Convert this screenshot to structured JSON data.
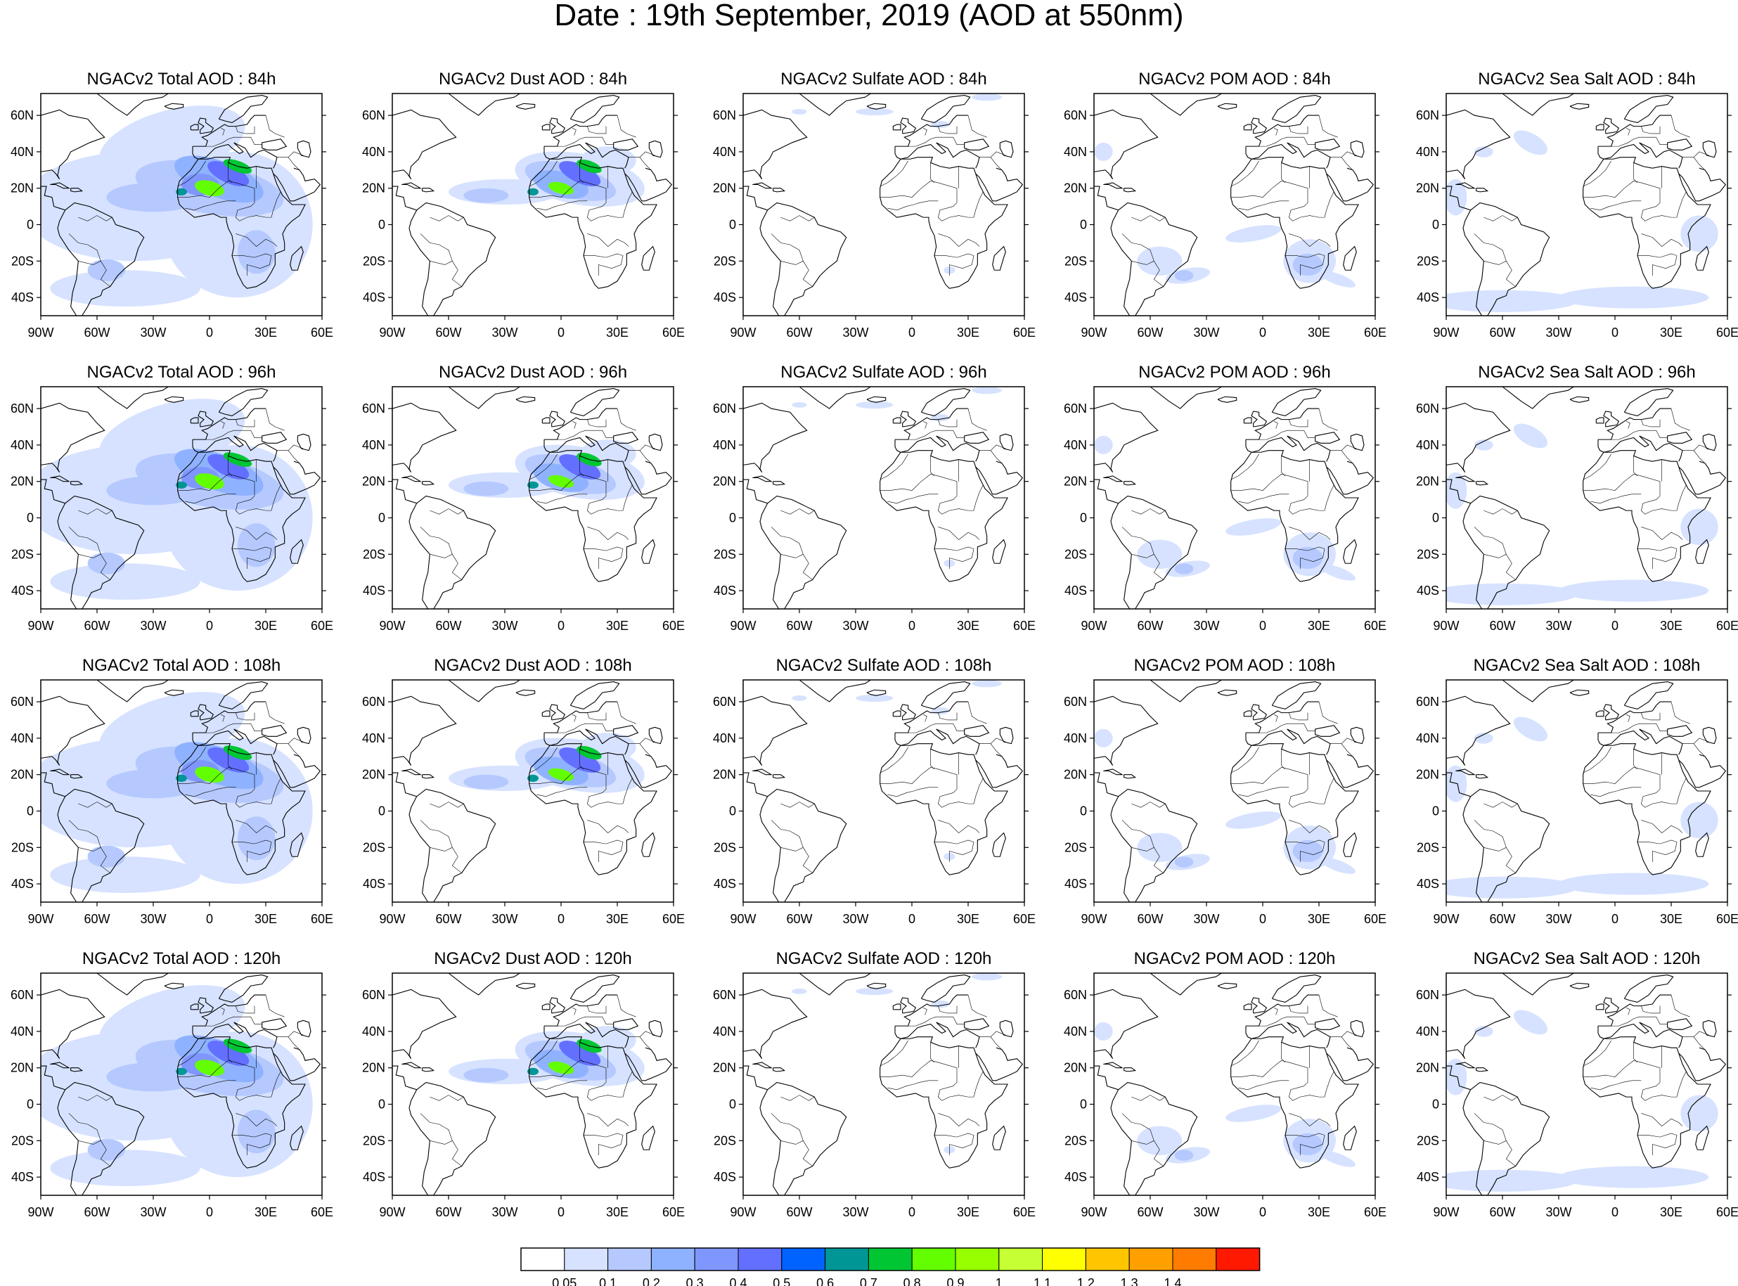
{
  "title": "Date : 19th September, 2019 (AOD at 550nm)",
  "lat_labels": [
    "60N",
    "40N",
    "20N",
    "0",
    "20S",
    "40S"
  ],
  "lon_labels": [
    "90W",
    "60W",
    "30W",
    "0",
    "30E",
    "60E"
  ],
  "map_extent": {
    "lon_min": -90,
    "lon_max": 60,
    "lat_min": -50,
    "lat_max": 72
  },
  "panels": [
    [
      {
        "title": "NGACv2 Total AOD : 84h",
        "species": "total",
        "lead": 84
      },
      {
        "title": "NGACv2 Dust AOD : 84h",
        "species": "dust",
        "lead": 84
      },
      {
        "title": "NGACv2 Sulfate AOD : 84h",
        "species": "sulfate",
        "lead": 84
      },
      {
        "title": "NGACv2 POM AOD : 84h",
        "species": "pom",
        "lead": 84
      },
      {
        "title": "NGACv2 Sea Salt AOD : 84h",
        "species": "seasalt",
        "lead": 84
      }
    ],
    [
      {
        "title": "NGACv2 Total AOD : 96h",
        "species": "total",
        "lead": 96
      },
      {
        "title": "NGACv2 Dust AOD : 96h",
        "species": "dust",
        "lead": 96
      },
      {
        "title": "NGACv2 Sulfate AOD : 96h",
        "species": "sulfate",
        "lead": 96
      },
      {
        "title": "NGACv2 POM AOD : 96h",
        "species": "pom",
        "lead": 96
      },
      {
        "title": "NGACv2 Sea Salt AOD : 96h",
        "species": "seasalt",
        "lead": 96
      }
    ],
    [
      {
        "title": "NGACv2 Total AOD : 108h",
        "species": "total",
        "lead": 108
      },
      {
        "title": "NGACv2 Dust AOD : 108h",
        "species": "dust",
        "lead": 108
      },
      {
        "title": "NGACv2 Sulfate AOD : 108h",
        "species": "sulfate",
        "lead": 108
      },
      {
        "title": "NGACv2 POM AOD : 108h",
        "species": "pom",
        "lead": 108
      },
      {
        "title": "NGACv2 Sea Salt AOD : 108h",
        "species": "seasalt",
        "lead": 108
      }
    ],
    [
      {
        "title": "NGACv2 Total AOD : 120h",
        "species": "total",
        "lead": 120
      },
      {
        "title": "NGACv2 Dust AOD : 120h",
        "species": "dust",
        "lead": 120
      },
      {
        "title": "NGACv2 Sulfate AOD : 120h",
        "species": "sulfate",
        "lead": 120
      },
      {
        "title": "NGACv2 POM AOD : 120h",
        "species": "pom",
        "lead": 120
      },
      {
        "title": "NGACv2 Sea Salt  AOD : 120h",
        "species": "seasalt",
        "lead": 120
      }
    ]
  ],
  "colorbar": {
    "labels": [
      "0.05",
      "0.1",
      "0.2",
      "0.3",
      "0.4",
      "0.5",
      "0.6",
      "0.7",
      "0.8",
      "0.9",
      "1",
      "1.1",
      "1.2",
      "1.3",
      "1.4"
    ],
    "colors": [
      "#ffffff",
      "#d6e2ff",
      "#b5c9ff",
      "#8eb2ff",
      "#7f96ff",
      "#6370ff",
      "#0063ff",
      "#009696",
      "#00c633",
      "#63ff00",
      "#96ff00",
      "#c6ff33",
      "#ffff00",
      "#ffc600",
      "#ffa000",
      "#ff7c00",
      "#ff1900"
    ]
  }
}
